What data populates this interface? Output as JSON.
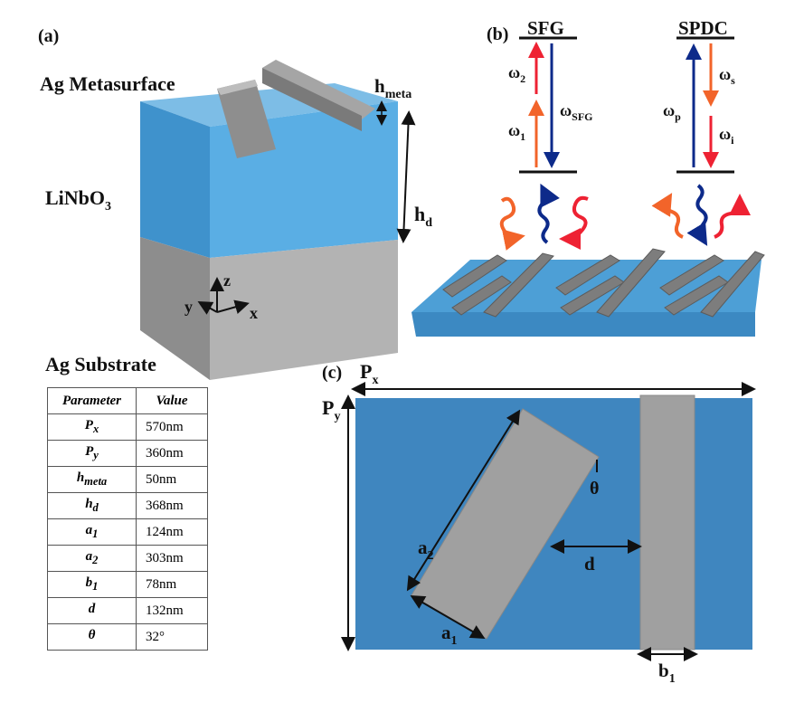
{
  "panel_a": {
    "label": "(a)",
    "metasurface_label": "Ag Metasurface",
    "dielectric_label": "LiNbO",
    "dielectric_sub": "3",
    "substrate_label": "Ag Substrate",
    "h_meta": {
      "base": "h",
      "sub": "meta"
    },
    "h_d": {
      "base": "h",
      "sub": "d"
    },
    "axes": {
      "x": "x",
      "y": "y",
      "z": "z"
    }
  },
  "table": {
    "headers": [
      "Parameter",
      "Value"
    ],
    "rows": [
      {
        "param": "P",
        "sub": "x",
        "value": "570nm"
      },
      {
        "param": "P",
        "sub": "y",
        "value": "360nm"
      },
      {
        "param": "h",
        "sub": "meta",
        "value": "50nm"
      },
      {
        "param": "h",
        "sub": "d",
        "value": "368nm"
      },
      {
        "param": "a",
        "sub": "1",
        "value": "124nm"
      },
      {
        "param": "a",
        "sub": "2",
        "value": "303nm"
      },
      {
        "param": "b",
        "sub": "1",
        "value": "78nm"
      },
      {
        "param": "d",
        "sub": "",
        "value": "132nm"
      },
      {
        "param": "θ",
        "sub": "",
        "value": "32°"
      }
    ]
  },
  "panel_b": {
    "label": "(b)",
    "sfg": {
      "title": "SFG",
      "w1": "ω",
      "w1_sub": "1",
      "w2": "ω",
      "w2_sub": "2",
      "wsfg": "ω",
      "wsfg_sub": "SFG"
    },
    "spdc": {
      "title": "SPDC",
      "wp": "ω",
      "wp_sub": "p",
      "ws": "ω",
      "ws_sub": "s",
      "wi": "ω",
      "wi_sub": "i"
    }
  },
  "panel_c": {
    "label": "(c)",
    "px": {
      "base": "P",
      "sub": "x"
    },
    "py": {
      "base": "P",
      "sub": "y"
    },
    "a1": {
      "base": "a",
      "sub": "1"
    },
    "a2": {
      "base": "a",
      "sub": "2"
    },
    "b1": {
      "base": "b",
      "sub": "1"
    },
    "d": "d",
    "theta": "θ"
  },
  "colors": {
    "dielectric": "#4d9fd6",
    "metal": "#9a9a9a",
    "blue_arrow": "#0d2a8a",
    "red_arrow": "#ee2233",
    "orange_arrow": "#f2642a",
    "unit_cell": "#3f86bf"
  }
}
